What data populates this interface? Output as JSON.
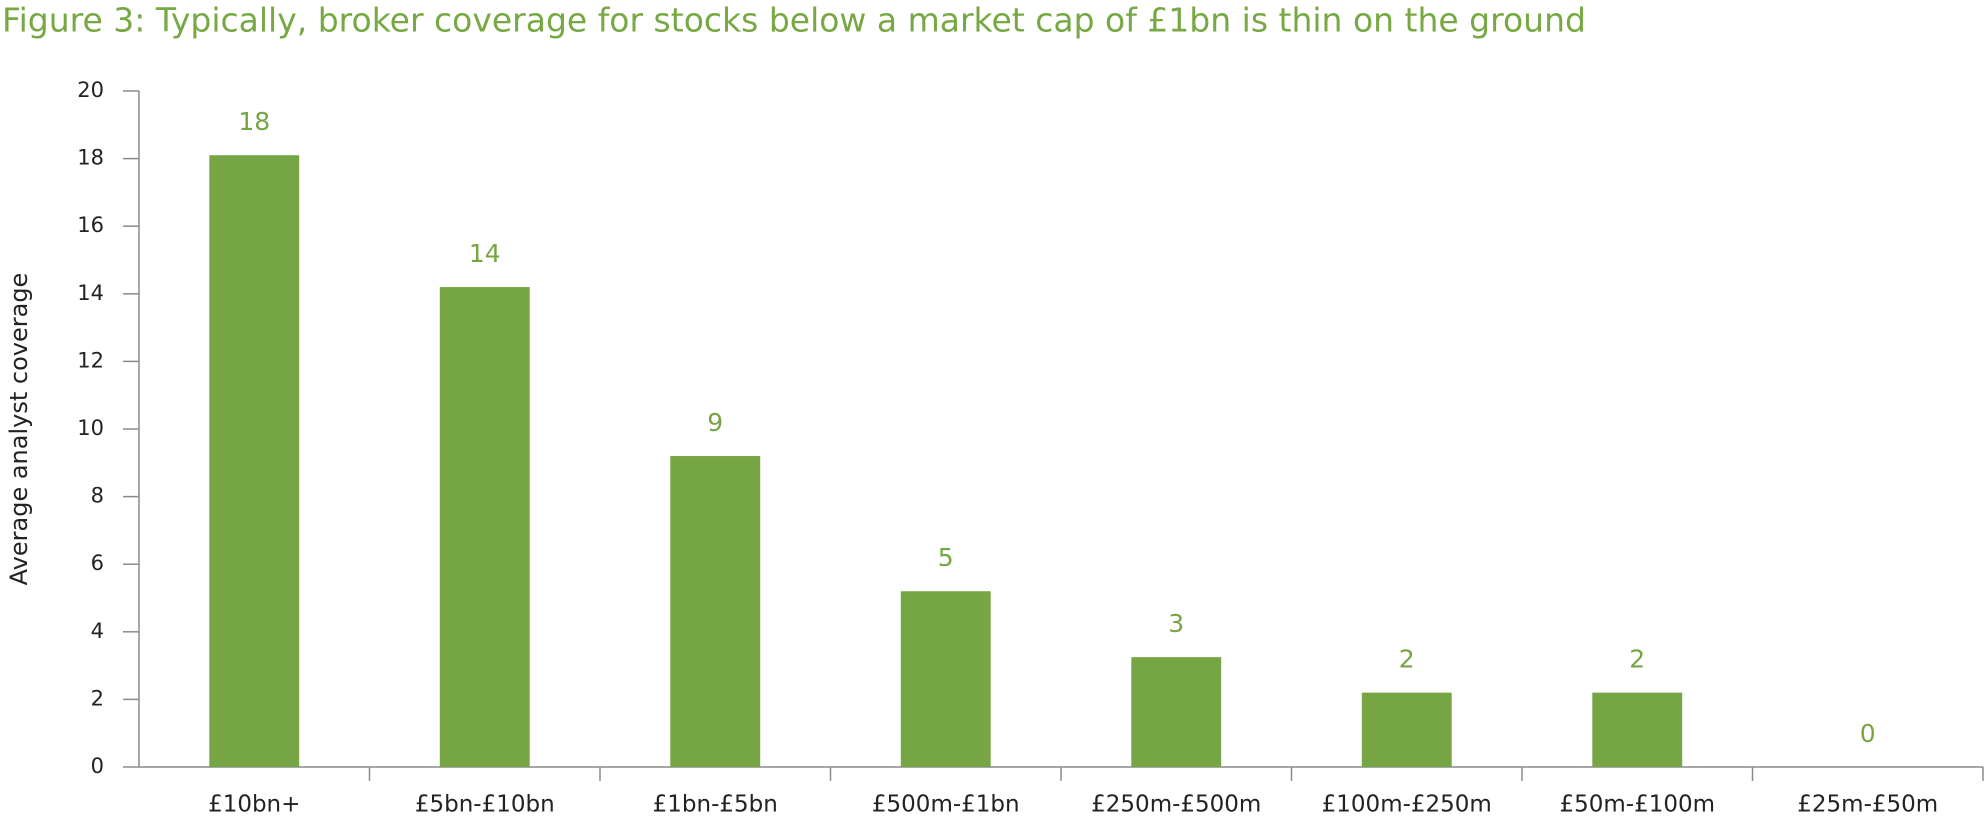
{
  "chart_data": {
    "type": "bar",
    "title": "Figure 3: Typically, broker coverage for stocks below a market cap of £1bn is thin on the ground",
    "y_label": "Average analyst coverage",
    "categories": [
      "£10bn+",
      "£5bn-£10bn",
      "£1bn-£5bn",
      "£500m-£1bn",
      "£250m-£500m",
      "£100m-£250m",
      "£50m-£100m",
      "£25m-£50m"
    ],
    "values": [
      18.1,
      14.2,
      9.2,
      5.2,
      3.25,
      2.2,
      2.2,
      0
    ],
    "value_labels": [
      "18",
      "14",
      "9",
      "5",
      "3",
      "2",
      "2",
      "0"
    ],
    "color": "#76a543",
    "ylim": [
      0,
      20
    ],
    "yticks": [
      0,
      2,
      4,
      6,
      8,
      10,
      12,
      14,
      16,
      18,
      20
    ],
    "grid": false
  }
}
